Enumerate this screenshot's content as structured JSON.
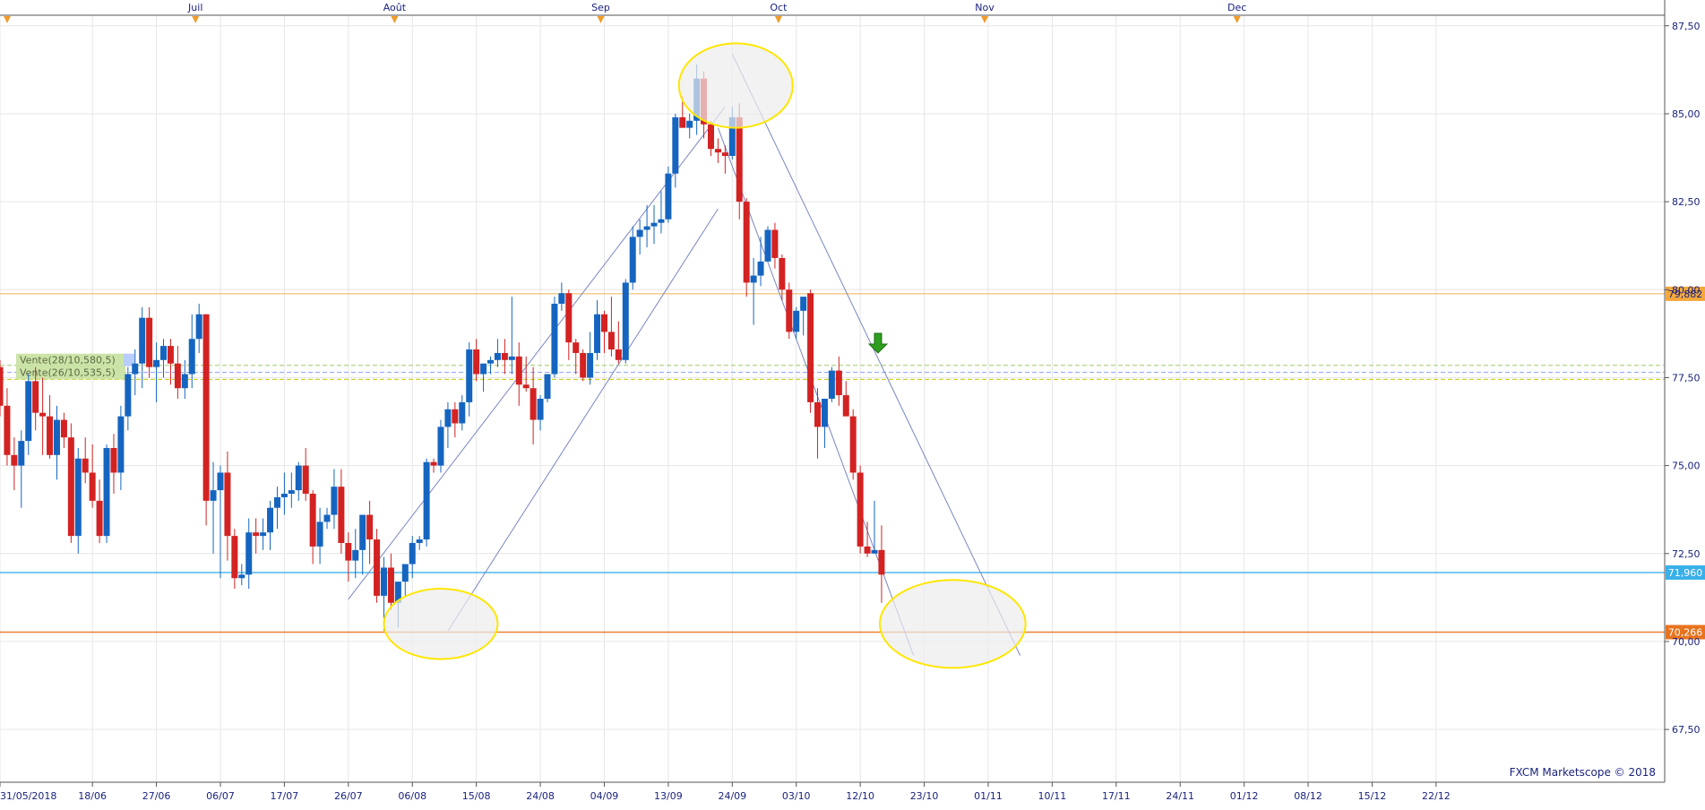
{
  "chart_data": {
    "type": "candlestick",
    "title": "",
    "xlabel": "",
    "ylabel": "",
    "ylim": [
      66,
      87.8
    ],
    "y_ticks": [
      67.5,
      70,
      72.5,
      75,
      77.5,
      80,
      82.5,
      85,
      87.5
    ],
    "y_tick_labels": [
      "67,50",
      "70,00",
      "72,50",
      "75,00",
      "77,50",
      "80,00",
      "82,50",
      "85,00",
      "87,50"
    ],
    "x_tick_labels": [
      "31/05/2018",
      "18/06",
      "27/06",
      "06/07",
      "17/07",
      "26/07",
      "06/08",
      "15/08",
      "24/08",
      "04/09",
      "13/09",
      "24/09",
      "03/10",
      "12/10",
      "23/10",
      "01/11",
      "10/11",
      "17/11",
      "24/11",
      "01/12",
      "08/12",
      "15/12",
      "22/12"
    ],
    "x_tick_positions": [
      0,
      13,
      22,
      31,
      40,
      49,
      58,
      67,
      76,
      85,
      94,
      103,
      112,
      121,
      130,
      139,
      148,
      157,
      166,
      175,
      184,
      193,
      202
    ],
    "month_labels": [
      "Juil",
      "Août",
      "Sep",
      "Oct",
      "Nov",
      "Dec"
    ],
    "month_positions": [
      27.5,
      55.5,
      84.5,
      109.5,
      138.5,
      174
    ],
    "candles": [
      [
        77.8,
        78.0,
        76.4,
        76.7
      ],
      [
        76.7,
        77.2,
        75.0,
        75.3
      ],
      [
        75.3,
        75.8,
        74.3,
        75.0
      ],
      [
        75.0,
        76.0,
        73.8,
        75.7
      ],
      [
        75.7,
        77.6,
        75.3,
        77.4
      ],
      [
        77.4,
        77.8,
        76.0,
        76.5
      ],
      [
        76.5,
        77.5,
        75.3,
        76.4
      ],
      [
        76.4,
        77.0,
        75.2,
        75.3
      ],
      [
        75.3,
        76.7,
        74.6,
        76.3
      ],
      [
        76.3,
        76.5,
        75.5,
        75.8
      ],
      [
        75.8,
        76.2,
        72.8,
        73.0
      ],
      [
        73.0,
        75.5,
        72.5,
        75.2
      ],
      [
        75.2,
        75.8,
        74.5,
        74.8
      ],
      [
        74.8,
        75.6,
        73.8,
        74.0
      ],
      [
        74.0,
        74.6,
        72.8,
        73.0
      ],
      [
        73.0,
        75.6,
        72.8,
        75.5
      ],
      [
        75.5,
        75.9,
        74.2,
        74.8
      ],
      [
        74.8,
        76.7,
        74.3,
        76.4
      ],
      [
        76.4,
        77.8,
        76.0,
        77.6
      ],
      [
        77.6,
        78.3,
        77.0,
        77.9
      ],
      [
        77.9,
        79.5,
        77.2,
        79.2
      ],
      [
        79.2,
        79.5,
        77.5,
        77.8
      ],
      [
        77.8,
        78.5,
        76.8,
        78.0
      ],
      [
        78.0,
        78.6,
        77.5,
        78.4
      ],
      [
        78.4,
        78.6,
        77.3,
        77.9
      ],
      [
        77.9,
        78.4,
        76.9,
        77.2
      ],
      [
        77.2,
        78.0,
        76.9,
        77.6
      ],
      [
        77.6,
        79.3,
        77.2,
        78.6
      ],
      [
        78.6,
        79.6,
        78.2,
        79.3
      ],
      [
        79.3,
        79.3,
        73.3,
        74.0
      ],
      [
        74.0,
        75.1,
        72.5,
        74.3
      ],
      [
        74.3,
        75.0,
        71.8,
        74.8
      ],
      [
        74.8,
        75.4,
        72.3,
        73.0
      ],
      [
        73.0,
        73.2,
        71.5,
        71.8
      ],
      [
        71.8,
        72.2,
        71.6,
        71.9
      ],
      [
        71.9,
        73.5,
        71.5,
        73.1
      ],
      [
        73.1,
        73.5,
        72.5,
        73.0
      ],
      [
        73.0,
        73.5,
        72.6,
        73.1
      ],
      [
        73.1,
        74.0,
        72.6,
        73.8
      ],
      [
        73.8,
        74.4,
        73.2,
        74.1
      ],
      [
        74.1,
        74.8,
        73.6,
        74.2
      ],
      [
        74.2,
        74.8,
        73.8,
        74.3
      ],
      [
        74.3,
        75.1,
        74.0,
        75.0
      ],
      [
        75.0,
        75.5,
        74.0,
        74.2
      ],
      [
        74.2,
        74.3,
        72.2,
        72.7
      ],
      [
        72.7,
        73.8,
        72.2,
        73.4
      ],
      [
        73.4,
        73.8,
        73.2,
        73.6
      ],
      [
        73.6,
        74.9,
        73.2,
        74.4
      ],
      [
        74.4,
        74.9,
        72.5,
        72.8
      ],
      [
        72.8,
        73.1,
        71.7,
        72.3
      ],
      [
        72.3,
        73.2,
        71.8,
        72.6
      ],
      [
        72.6,
        73.6,
        71.9,
        73.6
      ],
      [
        73.6,
        74.0,
        72.2,
        72.9
      ],
      [
        72.9,
        73.2,
        71.1,
        71.3
      ],
      [
        71.3,
        72.4,
        70.3,
        72.1
      ],
      [
        72.1,
        72.5,
        70.9,
        71.1
      ],
      [
        71.1,
        71.7,
        70.4,
        71.7
      ],
      [
        71.7,
        72.2,
        71.3,
        72.2
      ],
      [
        72.2,
        73.0,
        71.8,
        72.8
      ],
      [
        72.8,
        73.0,
        72.6,
        72.9
      ],
      [
        72.9,
        75.2,
        72.7,
        75.1
      ],
      [
        75.1,
        75.2,
        74.8,
        75.0
      ],
      [
        75.0,
        76.3,
        74.8,
        76.1
      ],
      [
        76.1,
        76.8,
        75.5,
        76.6
      ],
      [
        76.6,
        76.8,
        75.8,
        76.2
      ],
      [
        76.2,
        77.0,
        76.0,
        76.8
      ],
      [
        76.8,
        78.5,
        76.4,
        78.3
      ],
      [
        78.3,
        78.6,
        77.4,
        77.6
      ],
      [
        77.6,
        77.9,
        77.1,
        77.9
      ],
      [
        77.9,
        78.1,
        77.6,
        78.0
      ],
      [
        78.0,
        78.6,
        77.8,
        78.2
      ],
      [
        78.2,
        78.6,
        77.6,
        78.0
      ],
      [
        78.0,
        79.8,
        77.6,
        78.1
      ],
      [
        78.1,
        78.5,
        76.7,
        77.3
      ],
      [
        77.3,
        78.1,
        77.1,
        77.2
      ],
      [
        77.2,
        77.8,
        75.6,
        76.3
      ],
      [
        76.3,
        77.0,
        76.0,
        76.9
      ],
      [
        76.9,
        77.6,
        76.8,
        77.6
      ],
      [
        77.6,
        79.8,
        77.5,
        79.6
      ],
      [
        79.6,
        80.2,
        79.4,
        79.9
      ],
      [
        79.9,
        80.0,
        78.0,
        78.5
      ],
      [
        78.5,
        78.6,
        77.6,
        78.2
      ],
      [
        78.2,
        78.3,
        77.4,
        77.5
      ],
      [
        77.5,
        78.8,
        77.3,
        78.2
      ],
      [
        78.2,
        79.7,
        78.0,
        79.3
      ],
      [
        79.3,
        79.4,
        78.2,
        78.8
      ],
      [
        78.8,
        79.8,
        78.1,
        78.3
      ],
      [
        78.3,
        79.1,
        77.9,
        78.0
      ],
      [
        78.0,
        80.3,
        77.9,
        80.2
      ],
      [
        80.2,
        81.8,
        80.0,
        81.5
      ],
      [
        81.5,
        82.0,
        81.0,
        81.7
      ],
      [
        81.7,
        82.4,
        81.2,
        81.8
      ],
      [
        81.8,
        82.4,
        81.3,
        81.9
      ],
      [
        81.9,
        82.8,
        81.6,
        82.0
      ],
      [
        82.0,
        83.5,
        81.9,
        83.3
      ],
      [
        83.3,
        85.0,
        82.9,
        84.9
      ],
      [
        84.9,
        85.5,
        84.6,
        84.6
      ],
      [
        84.6,
        85.0,
        84.3,
        84.8
      ],
      [
        84.8,
        86.4,
        84.4,
        86.0
      ],
      [
        86.0,
        86.2,
        84.3,
        84.7
      ],
      [
        84.7,
        84.8,
        83.8,
        84.0
      ],
      [
        84.0,
        84.3,
        83.6,
        83.9
      ],
      [
        83.9,
        84.1,
        83.3,
        83.8
      ],
      [
        83.8,
        85.2,
        83.7,
        84.9
      ],
      [
        84.9,
        85.3,
        82.0,
        82.5
      ],
      [
        82.5,
        82.6,
        79.8,
        80.2
      ],
      [
        80.2,
        80.9,
        79.0,
        80.4
      ],
      [
        80.4,
        81.5,
        80.1,
        80.8
      ],
      [
        80.8,
        81.8,
        81.0,
        81.7
      ],
      [
        81.7,
        81.9,
        80.6,
        80.9
      ],
      [
        80.9,
        81.0,
        79.7,
        80.0
      ],
      [
        80.0,
        80.2,
        78.6,
        78.8
      ],
      [
        78.8,
        79.5,
        78.6,
        79.4
      ],
      [
        79.4,
        79.7,
        78.7,
        79.8
      ],
      [
        79.9,
        80.0,
        76.5,
        76.8
      ],
      [
        76.8,
        77.2,
        75.2,
        76.1
      ],
      [
        76.1,
        76.8,
        75.5,
        76.9
      ],
      [
        76.9,
        77.8,
        76.8,
        77.7
      ],
      [
        77.7,
        78.1,
        76.7,
        77.0
      ],
      [
        77.0,
        77.4,
        76.4,
        76.4
      ],
      [
        76.4,
        76.6,
        74.6,
        74.8
      ],
      [
        74.8,
        75.0,
        72.5,
        72.7
      ],
      [
        72.7,
        73.4,
        72.4,
        72.5
      ],
      [
        72.5,
        74.0,
        72.5,
        72.6
      ],
      [
        72.6,
        73.3,
        71.1,
        71.9
      ]
    ],
    "reference_levels": [
      {
        "value": 79.882,
        "label": "79,882",
        "color": "#f4a83c"
      },
      {
        "value": 71.96,
        "label": "71,960",
        "color": "#3ab0ea"
      },
      {
        "value": 70.266,
        "label": "70,266",
        "color": "#e8731e"
      }
    ],
    "order_labels": [
      {
        "text": "Vente(28/10,580,5)",
        "value": 77.85
      },
      {
        "text": "Vente(26/10,535,5)",
        "value": 77.45
      }
    ],
    "watermark": "FXCM Marketscope © 2018",
    "colors": {
      "up": "#1565c0",
      "down": "#d32222",
      "grid": "#e6e6e6",
      "trendline": "#7a86c2",
      "ellipse_stroke": "#ffe600",
      "ellipse_fill": "#ededed",
      "arrow": "#2e9e1e",
      "axis_text": "#1a237e"
    }
  }
}
